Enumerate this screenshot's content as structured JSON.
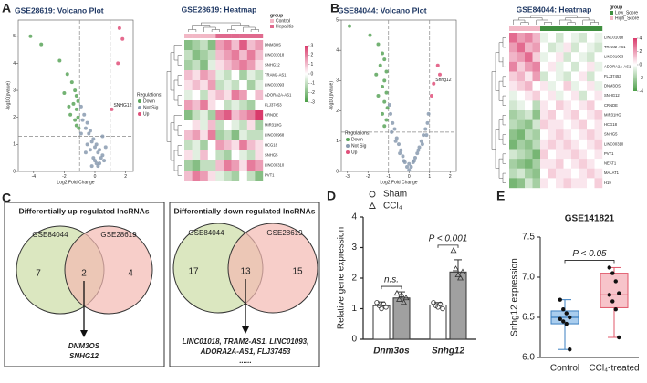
{
  "panel_labels": [
    "A",
    "B",
    "C",
    "D",
    "E"
  ],
  "chart_data": [
    {
      "type": "volcano",
      "title": "GSE28619: Volcano Plot",
      "xlabel": "Log2 Fold Change",
      "ylabel": "-log10(pvalue)",
      "xlim": [
        -5,
        2.5
      ],
      "ylim": [
        0,
        5.6
      ],
      "xticks": [
        -4,
        -2,
        0,
        2
      ],
      "yticks": [
        0,
        1,
        2,
        3,
        4,
        5
      ],
      "thresholds": {
        "x": [
          -1,
          1
        ],
        "y": [
          1.3
        ]
      },
      "legend_title": "Regulations:",
      "series": [
        {
          "name": "Down",
          "color": "#5aa55a",
          "x": [
            -4.2,
            -3.5,
            -2.3,
            -1.8,
            -1.5,
            -1.3,
            -1.2,
            -1.1,
            -1.4,
            -1.2,
            -1.6,
            -1.1,
            -1.3,
            -1.2,
            -1.05,
            -2.0,
            -1.7
          ],
          "y": [
            5.0,
            4.7,
            4.1,
            3.6,
            3.3,
            3.0,
            2.8,
            2.6,
            2.5,
            2.3,
            2.1,
            2.0,
            1.9,
            1.7,
            1.6,
            2.9,
            2.4
          ]
        },
        {
          "name": "Not Sig",
          "color": "#8a9bb0",
          "x": [
            -0.9,
            -0.7,
            -0.5,
            -0.3,
            -0.1,
            0.1,
            0.3,
            0.5,
            -0.8,
            -0.6,
            -0.4,
            -0.2,
            0,
            0.2,
            0.4,
            0.6,
            -0.5,
            -0.3,
            -0.1,
            0.1,
            0.3,
            -0.9,
            -0.2,
            0.2,
            0.7,
            -0.6,
            0,
            0.5
          ],
          "y": [
            2.4,
            2.1,
            1.8,
            1.5,
            1.2,
            1.0,
            0.8,
            0.6,
            1.9,
            1.6,
            1.4,
            1.1,
            0.9,
            0.7,
            0.5,
            0.4,
            1.0,
            0.8,
            0.5,
            0.3,
            0.3,
            1.4,
            0.2,
            0.2,
            0.9,
            0.7,
            0.4,
            1.3
          ]
        },
        {
          "name": "Up",
          "color": "#e0507a",
          "x": [
            1.6,
            1.8,
            1.5,
            1.1
          ],
          "y": [
            5.3,
            4.9,
            4.0,
            2.3
          ],
          "labels": [
            null,
            null,
            null,
            "SNHG12"
          ]
        }
      ]
    },
    {
      "type": "heatmap",
      "title": "GSE28619: Heatmap",
      "legend_title": "group",
      "groups": [
        "Control",
        "Hepatitis"
      ],
      "group_colors": [
        "#f2b8c6",
        "#e06a8e"
      ],
      "col_groups": [
        0,
        0,
        0,
        0,
        1,
        1,
        1,
        1,
        1,
        1
      ],
      "clim": [
        -3,
        3
      ],
      "colors": [
        "#4a9e46",
        "#ffffff",
        "#d93a6b"
      ],
      "colorbar_ticks": [
        3,
        2,
        1,
        0,
        -1,
        -2,
        -3
      ],
      "rows": [
        "DNM3OS",
        "LINC01018",
        "SNHG12",
        "TRAM2-AS1",
        "LINC01093",
        "ADORA2A-AS1",
        "FLJ37453",
        "CRNDE",
        "MIR31HG",
        "LINC00968",
        "HCG18",
        "SNHG5",
        "LINC00310",
        "PVT1"
      ],
      "values": [
        [
          -2,
          -1.5,
          -1,
          -2,
          1.5,
          2,
          1,
          2.5,
          1,
          1.5
        ],
        [
          -1,
          -2,
          -1.5,
          -1,
          1,
          1.5,
          2,
          1,
          2,
          1
        ],
        [
          -1.5,
          -1,
          -2,
          -0.5,
          0.5,
          1,
          1.5,
          2,
          1.5,
          0.5
        ],
        [
          1,
          0.5,
          1.5,
          1,
          -0.5,
          -1,
          0,
          -1.5,
          -0.5,
          -1
        ],
        [
          0.5,
          1,
          0.5,
          1.5,
          -1,
          -0.5,
          -1,
          0,
          -1.5,
          -0.5
        ],
        [
          -0.5,
          0,
          -1,
          0.5,
          1,
          0.5,
          2,
          1.5,
          0,
          1
        ],
        [
          1.5,
          1,
          2,
          0.5,
          0,
          -1,
          -0.5,
          -1,
          -1.5,
          0
        ],
        [
          -2,
          -1,
          -0.5,
          -1.5,
          2,
          2.5,
          1,
          1.5,
          2,
          3
        ],
        [
          0,
          0.5,
          -0.5,
          1,
          -1,
          0,
          -0.5,
          -1,
          0.5,
          -1.5
        ],
        [
          1,
          1.5,
          0.5,
          2,
          -1.5,
          -1,
          -2,
          -0.5,
          -1,
          -1
        ],
        [
          -1,
          -0.5,
          -1.5,
          0,
          1.5,
          1,
          0.5,
          2,
          1,
          0.5
        ],
        [
          0.5,
          -0.5,
          1,
          0,
          -1,
          -1.5,
          0,
          -0.5,
          -1,
          0.5
        ],
        [
          -1.5,
          -2,
          -1,
          -1,
          1,
          2,
          1.5,
          0.5,
          2,
          1.5
        ],
        [
          1,
          2,
          1.5,
          0.5,
          -0.5,
          -1,
          -1.5,
          0,
          -1,
          -2
        ]
      ]
    },
    {
      "type": "volcano",
      "title": "GSE84044: Volcano Plot",
      "xlabel": "Log2 Fold Change",
      "ylabel": "-log10(pvalue)",
      "xlim": [
        -3.3,
        2.3
      ],
      "ylim": [
        0,
        5
      ],
      "xticks": [
        -3,
        -2,
        -1,
        0,
        1,
        2
      ],
      "yticks": [
        0,
        1,
        2,
        3,
        4,
        5
      ],
      "thresholds": {
        "x": [
          -1,
          1
        ],
        "y": [
          1.3
        ]
      },
      "legend_title": "Regulations:",
      "series": [
        {
          "name": "Down",
          "color": "#5aa55a",
          "x": [
            -2.9,
            -1.9,
            -1.5,
            -1.3,
            -1.2,
            -1.4,
            -1.1,
            -1.6,
            -1.2,
            -1.3,
            -1.1,
            -1.5,
            -1.2,
            -1.05,
            -1.3,
            -1.1,
            -1.2
          ],
          "y": [
            4.8,
            4.5,
            4.2,
            3.9,
            3.7,
            3.5,
            3.3,
            3.2,
            3.0,
            2.8,
            2.6,
            2.5,
            2.3,
            2.1,
            1.9,
            1.7,
            1.5
          ]
        },
        {
          "name": "Not Sig",
          "color": "#8a9bb0",
          "x": [
            -0.9,
            -0.8,
            -0.7,
            -0.6,
            -0.5,
            -0.4,
            -0.3,
            -0.2,
            -0.1,
            0,
            0.1,
            0.2,
            0.3,
            0.4,
            0.5,
            0.6,
            0.7,
            0.8,
            0.9,
            -0.85,
            -0.65,
            -0.45,
            -0.25,
            0.25,
            0.45,
            0.65,
            0.85,
            -0.95,
            0.95,
            0
          ],
          "y": [
            1.9,
            1.6,
            1.4,
            1.1,
            0.9,
            0.7,
            0.5,
            0.3,
            0.15,
            0.05,
            0.15,
            0.3,
            0.45,
            0.6,
            0.8,
            1.0,
            1.2,
            1.4,
            1.6,
            1.3,
            1.0,
            0.6,
            0.35,
            0.35,
            0.7,
            0.9,
            1.2,
            2.2,
            1.9,
            0.25
          ]
        },
        {
          "name": "Up",
          "color": "#e0507a",
          "x": [
            1.4,
            1.5,
            1.2,
            1.1
          ],
          "y": [
            3.5,
            3.2,
            2.9,
            2.5
          ],
          "labels": [
            null,
            null,
            "Snhg12",
            null
          ]
        }
      ]
    },
    {
      "type": "heatmap",
      "title": "GSE84044: Heatmap",
      "legend_title": "group",
      "groups": [
        "Low_Score",
        "High_Score"
      ],
      "group_colors": [
        "#3f8f3f",
        "#f2b8c6"
      ],
      "col_groups": [
        1,
        1,
        1,
        1,
        0,
        0,
        0,
        0,
        0,
        0,
        0,
        0
      ],
      "clim": [
        -4,
        4
      ],
      "colors": [
        "#4a9e46",
        "#ffffff",
        "#d93a6b"
      ],
      "colorbar_ticks": [
        4,
        2,
        0,
        -2,
        -4
      ],
      "rows": [
        "LINC01018",
        "TRAM2-AS1",
        "LINC01093",
        "ADORA2A-AS1",
        "FLJ37453",
        "DNM3OS",
        "SNHG12",
        "CRNDE",
        "MIR31HG",
        "HCG18",
        "SNHG5",
        "LINC00310",
        "PVT1",
        "NEAT1",
        "MALAT1",
        "H19"
      ],
      "values": [
        [
          3,
          2,
          2.5,
          1.5,
          -0.5,
          0,
          -1,
          0,
          -0.5,
          -1,
          0,
          -0.5
        ],
        [
          2,
          3,
          1.5,
          2,
          0,
          -1,
          -0.5,
          0.5,
          -1,
          0,
          -0.5,
          -1
        ],
        [
          1.5,
          2,
          3,
          1,
          -0.5,
          0,
          0.5,
          -1,
          0,
          -0.5,
          -1,
          0
        ],
        [
          2.5,
          1,
          2,
          2.5,
          0,
          0.5,
          -0.5,
          0,
          -1,
          0,
          0.5,
          -0.5
        ],
        [
          1,
          1.5,
          0.5,
          2,
          -1,
          0,
          -0.5,
          -1,
          0,
          0.5,
          -1,
          0
        ],
        [
          0.5,
          1,
          1.5,
          0,
          0.5,
          -0.5,
          0,
          1,
          -0.5,
          0,
          0.5,
          -0.5
        ],
        [
          -0.5,
          0,
          0.5,
          1,
          0,
          0.5,
          -0.5,
          0,
          0.5,
          -1,
          0,
          0.5
        ],
        [
          -1,
          -0.5,
          0,
          -1.5,
          0.5,
          0,
          1,
          0.5,
          0,
          0.5,
          1,
          0
        ],
        [
          -2,
          -1.5,
          -1,
          -2.5,
          0.5,
          1,
          0,
          0.5,
          1,
          0,
          0.5,
          1
        ],
        [
          -1.5,
          -2,
          -2.5,
          -1,
          1,
          0.5,
          0.5,
          0,
          0.5,
          1,
          0,
          0.5
        ],
        [
          -2.5,
          -3,
          -1.5,
          -2,
          0,
          0.5,
          1,
          0.5,
          0,
          0.5,
          1,
          0.5
        ],
        [
          -3,
          -2,
          -2.5,
          -1.5,
          0.5,
          1,
          0.5,
          1,
          0.5,
          0,
          0.5,
          1
        ],
        [
          -1,
          -1.5,
          -2,
          -3,
          1,
          0,
          0.5,
          0.5,
          1,
          0.5,
          0,
          0.5
        ],
        [
          -2,
          -2.5,
          -3,
          -2,
          0.5,
          0.5,
          1,
          0,
          0.5,
          1,
          0.5,
          0
        ],
        [
          -1.5,
          -1,
          -2,
          -2.5,
          0,
          1,
          0.5,
          0.5,
          0,
          0.5,
          1,
          0.5
        ],
        [
          -3,
          -2.5,
          -1,
          -2,
          0.5,
          0,
          0.5,
          1,
          0.5,
          0.5,
          0,
          1
        ]
      ]
    },
    {
      "type": "bar",
      "ylabel": "Relative gene expression",
      "categories": [
        "Dnm3os",
        "Snhg12"
      ],
      "ylim": [
        0,
        4
      ],
      "yticks": [
        0,
        1,
        2,
        3,
        4
      ],
      "annotations": [
        "n.s.",
        "P < 0.001"
      ],
      "series": [
        {
          "name": "Sham",
          "color": "#ffffff",
          "marker": "circle",
          "values": [
            1.1,
            1.12
          ],
          "errors": [
            0.12,
            0.08
          ],
          "points": [
            [
              1.2,
              1.1,
              1.0,
              1.15,
              1.05
            ],
            [
              1.2,
              1.1,
              1.05,
              1.15,
              1.0
            ]
          ]
        },
        {
          "name": "CCl₄",
          "color": "#a0a0a0",
          "marker": "triangle",
          "values": [
            1.35,
            2.2
          ],
          "errors": [
            0.2,
            0.4
          ],
          "points": [
            [
              1.5,
              1.3,
              1.45,
              1.2,
              1.35
            ],
            [
              2.9,
              2.3,
              2.1,
              2.0,
              2.2
            ]
          ]
        }
      ]
    },
    {
      "type": "box",
      "title": "GSE141821",
      "ylabel": "Snhg12 expression",
      "categories": [
        "Control",
        "CCl₄-treated"
      ],
      "ylim": [
        6.0,
        7.5
      ],
      "yticks": [
        {
          "value": 6.0,
          "label": "6.0"
        },
        6.5,
        {
          "value": 7.0,
          "label": "7.0"
        },
        7.5
      ],
      "annotation": "P < 0.05",
      "colors": [
        "#3b7fc0",
        "#e0576a"
      ],
      "fills": [
        "#a9cdee",
        "#f7c4ca"
      ],
      "boxes": [
        {
          "min": 6.1,
          "q1": 6.42,
          "median": 6.5,
          "q3": 6.58,
          "max": 6.72
        },
        {
          "min": 6.25,
          "q1": 6.62,
          "median": 6.78,
          "q3": 7.05,
          "max": 7.12
        }
      ],
      "points": [
        [
          6.72,
          6.6,
          6.55,
          6.5,
          6.48,
          6.45,
          6.42,
          6.1
        ],
        [
          7.12,
          7.05,
          6.95,
          6.8,
          6.78,
          6.7,
          6.6,
          6.25
        ]
      ]
    }
  ],
  "venn": [
    {
      "title": "Differentially up-regulated lncRNAs",
      "sets": [
        "GSE84044",
        "GSE28619"
      ],
      "counts": [
        7,
        2,
        4
      ],
      "genes": [
        "DNM3OS",
        "SNHG12"
      ]
    },
    {
      "title": "Differentially down-regulated lncRNAs",
      "sets": [
        "GSE84044",
        "GSE28619"
      ],
      "counts": [
        17,
        13,
        15
      ],
      "genes": [
        "LINC01018, TRAM2-AS1, LINC01093,",
        "ADORA2A-AS1, FLJ37453",
        "......"
      ]
    }
  ]
}
